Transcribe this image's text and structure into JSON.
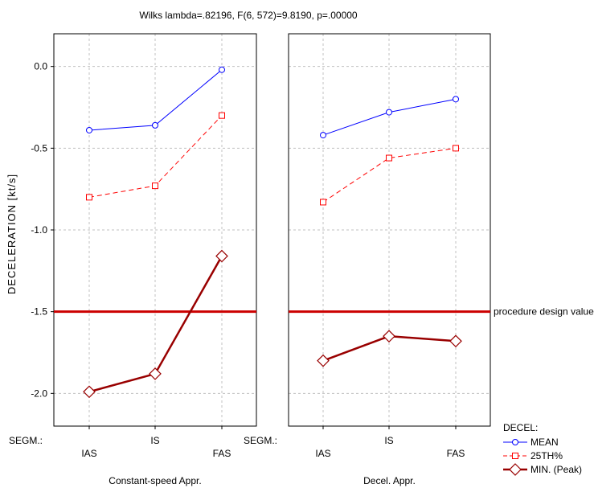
{
  "chart_data": {
    "type": "line",
    "title": "Wilks lambda=.82196, F(6, 572)=9.8190, p=.00000",
    "ylabel": "DECELERATION [kt/s]",
    "ylim": [
      -2.2,
      0.2
    ],
    "yticks": [
      "0.0",
      "-0.5",
      "-1.0",
      "-1.5",
      "-2.0"
    ],
    "ytick_values": [
      0.0,
      -0.5,
      -1.0,
      -1.5,
      -2.0
    ],
    "grid": true,
    "segm_label": "SEGM.:",
    "categories": [
      "IAS",
      "IS",
      "FAS"
    ],
    "reference_line": {
      "label": "procedure design value",
      "value": -1.5,
      "color": "#cc0000"
    },
    "legend": {
      "title": "DECEL:",
      "position": "bottom-right",
      "entries": [
        "MEAN",
        "25TH%",
        "MIN. (Peak)"
      ]
    },
    "series_styles": [
      {
        "color": "#0000ff",
        "marker": "circle",
        "dash": false
      },
      {
        "color": "#ff0000",
        "marker": "square",
        "dash": true
      },
      {
        "color": "#990000",
        "marker": "diamond",
        "dash": false
      }
    ],
    "panels": [
      {
        "label": "Constant-speed Appr.",
        "series": [
          {
            "name": "MEAN",
            "values": [
              -0.39,
              -0.36,
              -0.02
            ]
          },
          {
            "name": "25TH%",
            "values": [
              -0.8,
              -0.73,
              -0.3
            ]
          },
          {
            "name": "MIN. (Peak)",
            "values": [
              -1.99,
              -1.88,
              -1.16
            ]
          }
        ]
      },
      {
        "label": "Decel. Appr.",
        "series": [
          {
            "name": "MEAN",
            "values": [
              -0.42,
              -0.28,
              -0.2
            ]
          },
          {
            "name": "25TH%",
            "values": [
              -0.83,
              -0.56,
              -0.5
            ]
          },
          {
            "name": "MIN. (Peak)",
            "values": [
              -1.8,
              -1.65,
              -1.68
            ]
          }
        ]
      }
    ]
  }
}
